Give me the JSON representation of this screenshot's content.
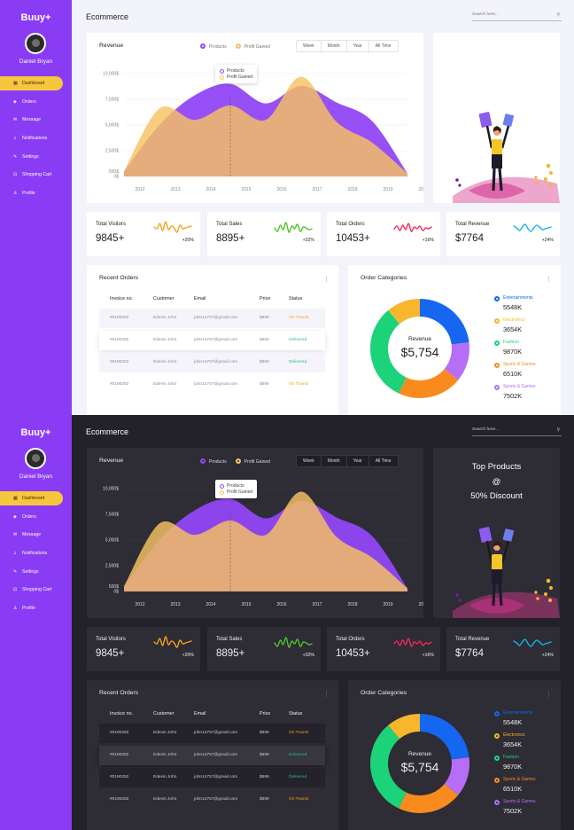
{
  "app": {
    "brand": "Buuy+",
    "user": "Daniel Bryan",
    "page_title": "Ecommerce",
    "search_placeholder": "Search here..."
  },
  "nav": [
    {
      "label": "Dashboard",
      "icon": "dashboard-icon"
    },
    {
      "label": "Orders",
      "icon": "box-icon"
    },
    {
      "label": "Message",
      "icon": "mail-icon"
    },
    {
      "label": "Notifications",
      "icon": "bell-icon"
    },
    {
      "label": "Settings",
      "icon": "wrench-icon"
    },
    {
      "label": "Shopping Cart",
      "icon": "cart-icon"
    },
    {
      "label": "Profile",
      "icon": "user-icon"
    }
  ],
  "revenue": {
    "title": "Revenue",
    "legend": [
      "Products",
      "Profit Gained"
    ],
    "tabs": [
      "Week",
      "Month",
      "Year",
      "All Time"
    ],
    "tooltip": [
      "Products",
      "Profit Gained"
    ]
  },
  "chart_data": {
    "type": "area",
    "title": "Revenue",
    "x": [
      "2012",
      "2013",
      "2014",
      "2015",
      "2016",
      "2017",
      "2018",
      "2019",
      "2020"
    ],
    "y_ticks": [
      "10,000$",
      "7,500$",
      "5,000$",
      "2,500$",
      "500$",
      "0$"
    ],
    "ylim": [
      0,
      10000
    ],
    "series": [
      {
        "name": "Products",
        "color": "#9147f4",
        "values": [
          500,
          5000,
          7900,
          9000,
          7100,
          8800,
          7200,
          5400,
          300
        ]
      },
      {
        "name": "Profit Gained",
        "color": "#f7c262",
        "values": [
          500,
          6600,
          5500,
          6900,
          5500,
          9700,
          5300,
          3300,
          300
        ]
      }
    ]
  },
  "promo": {
    "line1": "Top Products",
    "line2": "@",
    "line3": "50% Discount"
  },
  "stats": [
    {
      "label": "Total Visitors",
      "value": "9845+",
      "pct": "+20%",
      "color": "#f7a11b"
    },
    {
      "label": "Total Sales",
      "value": "8895+",
      "pct": "+32%",
      "color": "#4cc52a"
    },
    {
      "label": "Total Orders",
      "value": "10453+",
      "pct": "+16%",
      "color": "#f5275a"
    },
    {
      "label": "Total Revenue",
      "value": "$7764",
      "pct": "+24%",
      "color": "#16b4e8"
    }
  ],
  "orders": {
    "title": "Recent Orders",
    "headers": [
      "Invoice no.",
      "Customer",
      "Email",
      "Price",
      "Status"
    ],
    "rows": [
      {
        "invoice": "#0190292",
        "customer": "Edevin John",
        "email": "john14757@gmail.com",
        "price": "$899",
        "status": "On Transit"
      },
      {
        "invoice": "#0190292",
        "customer": "Edevin John",
        "email": "john14757@gmail.com",
        "price": "$899",
        "status": "Delivered"
      },
      {
        "invoice": "#0190292",
        "customer": "Edevin John",
        "email": "john14757@gmail.com",
        "price": "$899",
        "status": "Delivered"
      },
      {
        "invoice": "#0190292",
        "customer": "Edevin John",
        "email": "john14757@gmail.com",
        "price": "$899",
        "status": "On Transit"
      }
    ]
  },
  "categories": {
    "title": "Order Categories",
    "center_label": "Revenue",
    "center_value": "$5,754",
    "items": [
      {
        "label": "Entertainments",
        "value": "5548K",
        "color": "#1566f0"
      },
      {
        "label": "Electronics",
        "value": "3654K",
        "color": "#f7b62b"
      },
      {
        "label": "Fashion",
        "value": "9870K",
        "color": "#1cd37a"
      },
      {
        "label": "Sports & Games",
        "value": "6510K",
        "color": "#f88a1e"
      },
      {
        "label": "Sports & Games",
        "value": "7502K",
        "color": "#b56ef5"
      }
    ],
    "donut_slices": [
      {
        "label": "Entertainments",
        "fraction": 0.23,
        "color": "#1566f0"
      },
      {
        "label": "Sports & Games",
        "fraction": 0.13,
        "color": "#b56ef5"
      },
      {
        "label": "Sports & Games",
        "fraction": 0.21,
        "color": "#f88a1e"
      },
      {
        "label": "Fashion",
        "fraction": 0.32,
        "color": "#1cd37a"
      },
      {
        "label": "Electronics",
        "fraction": 0.11,
        "color": "#f7b62b"
      }
    ]
  }
}
